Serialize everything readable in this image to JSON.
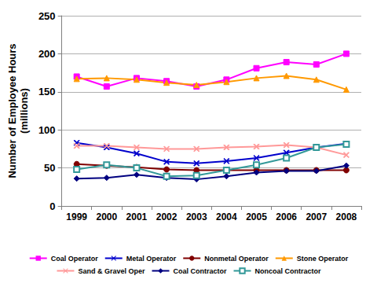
{
  "chart_data": {
    "type": "line",
    "y_label": "Number of Employee Hours\n(millions)",
    "categories": [
      "1999",
      "2000",
      "2001",
      "2002",
      "2003",
      "2004",
      "2005",
      "2006",
      "2007",
      "2008"
    ],
    "ylim": [
      0,
      250
    ],
    "yticks": [
      0,
      50,
      100,
      150,
      200,
      250
    ],
    "grid": true,
    "legend": "bottom",
    "series": [
      {
        "name": "Coal Operator",
        "color": "#ff00ff",
        "marker": "square",
        "values": [
          170,
          157,
          168,
          164,
          157,
          166,
          181,
          189,
          186,
          200
        ]
      },
      {
        "name": "Metal Operator",
        "color": "#0000cc",
        "marker": "x",
        "values": [
          83,
          77,
          69,
          58,
          56,
          59,
          63,
          70,
          77,
          82
        ]
      },
      {
        "name": "Nonmetal Operator",
        "color": "#800000",
        "marker": "circle",
        "values": [
          55,
          53,
          51,
          48,
          47,
          47,
          47,
          47,
          47,
          47
        ]
      },
      {
        "name": "Stone Operator",
        "color": "#ff9900",
        "marker": "triangle",
        "values": [
          167,
          168,
          166,
          162,
          159,
          163,
          168,
          171,
          166,
          153
        ]
      },
      {
        "name": "Sand & Gravel Oper",
        "color": "#ff9999",
        "marker": "x",
        "values": [
          79,
          79,
          77,
          75,
          75,
          77,
          78,
          80,
          77,
          67
        ]
      },
      {
        "name": "Coal Contractor",
        "color": "#000080",
        "marker": "diamond",
        "values": [
          36,
          37,
          41,
          37,
          35,
          39,
          44,
          46,
          46,
          53
        ]
      },
      {
        "name": "Noncoal Contractor",
        "color": "#339999",
        "marker": "square_open",
        "values": [
          48,
          54,
          50,
          39,
          40,
          47,
          54,
          63,
          77,
          81
        ]
      }
    ]
  }
}
